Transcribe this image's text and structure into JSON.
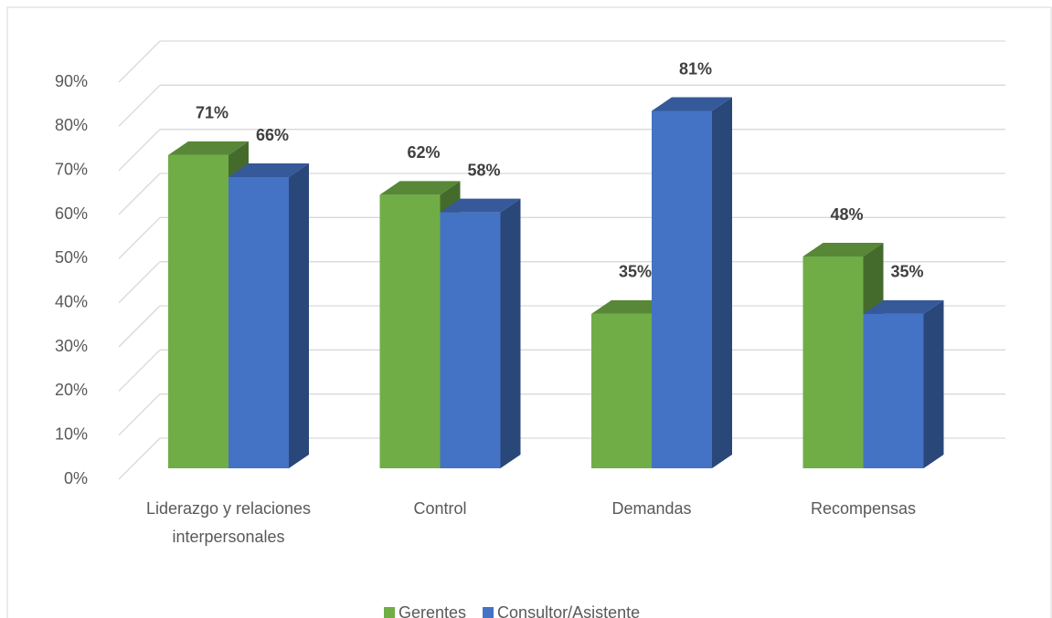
{
  "chart_data": {
    "type": "bar3d",
    "categories": [
      "Liderazgo y relaciones interpersonales",
      "Control",
      "Demandas",
      "Recompensas"
    ],
    "series": [
      {
        "name": "Gerentes",
        "color": "#70ad47",
        "values": [
          71,
          62,
          35,
          48
        ],
        "value_labels": [
          "71%",
          "62%",
          "35%",
          "48%"
        ]
      },
      {
        "name": "Consultor/Asistente",
        "color": "#4472c4",
        "values": [
          66,
          58,
          81,
          35
        ],
        "value_labels": [
          "66%",
          "58%",
          "81%",
          "35%"
        ]
      }
    ],
    "ylim": [
      0,
      90
    ],
    "yticks": [
      {
        "value": 0,
        "label": "0%"
      },
      {
        "value": 10,
        "label": "10%"
      },
      {
        "value": 20,
        "label": "20%"
      },
      {
        "value": 30,
        "label": "30%"
      },
      {
        "value": 40,
        "label": "40%"
      },
      {
        "value": 50,
        "label": "50%"
      },
      {
        "value": 60,
        "label": "60%"
      },
      {
        "value": 70,
        "label": "70%"
      },
      {
        "value": 80,
        "label": "80%"
      },
      {
        "value": 90,
        "label": "90%"
      }
    ],
    "grid": true,
    "legend": "bottom"
  }
}
